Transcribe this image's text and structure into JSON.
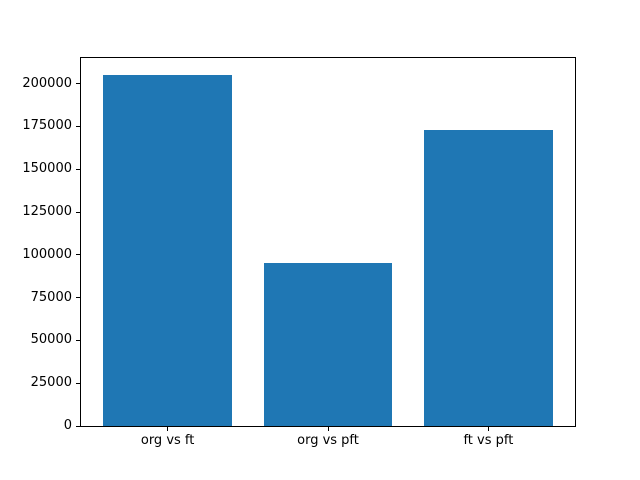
{
  "chart_data": {
    "type": "bar",
    "categories": [
      "org vs ft",
      "org vs pft",
      "ft vs pft"
    ],
    "values": [
      205000,
      95000,
      173000
    ],
    "title": "",
    "xlabel": "",
    "ylabel": "",
    "ylim": [
      0,
      215000
    ],
    "xlim": [
      -0.54,
      2.54
    ],
    "yticks": [
      0,
      25000,
      50000,
      75000,
      100000,
      125000,
      150000,
      175000,
      200000
    ],
    "bar_width_units": 0.8,
    "bar_color": "#1f77b4",
    "background_color": "#ffffff",
    "spine_color": "#000000",
    "text_color": "#000000",
    "grid": false,
    "legend": null
  }
}
